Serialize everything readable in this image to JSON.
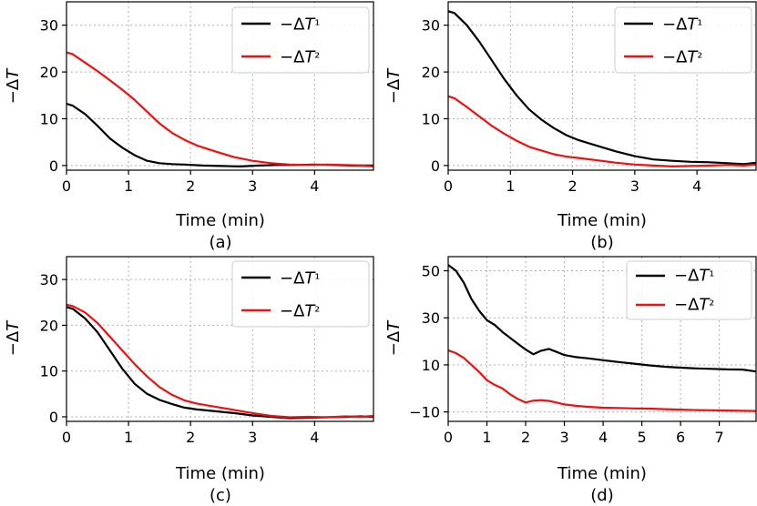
{
  "chart_data": [
    {
      "type": "line",
      "caption": "(a)",
      "xlabel": "Time (min)",
      "ylabel": "−ΔT",
      "xlim": [
        0,
        4.95
      ],
      "ylim": [
        -1,
        35
      ],
      "xticks": [
        0,
        1,
        2,
        3,
        4
      ],
      "yticks": [
        0,
        10,
        20,
        30
      ],
      "grid": true,
      "legend": "top-right",
      "series": [
        {
          "name": "−ΔT¹",
          "color": "#000000",
          "points": [
            [
              0,
              13.2
            ],
            [
              0.1,
              12.8
            ],
            [
              0.3,
              11
            ],
            [
              0.5,
              8.5
            ],
            [
              0.7,
              5.8
            ],
            [
              0.9,
              3.8
            ],
            [
              1.1,
              2.2
            ],
            [
              1.3,
              1
            ],
            [
              1.5,
              0.5
            ],
            [
              1.7,
              0.3
            ],
            [
              1.9,
              0.2
            ],
            [
              2.2,
              0
            ],
            [
              2.5,
              -0.1
            ],
            [
              2.8,
              -0.2
            ],
            [
              3.1,
              0
            ],
            [
              3.4,
              0.1
            ],
            [
              3.7,
              0.1
            ],
            [
              4.0,
              0.2
            ],
            [
              4.3,
              0.1
            ],
            [
              4.6,
              0
            ],
            [
              4.95,
              0
            ]
          ]
        },
        {
          "name": "−ΔT²",
          "color": "#ee1111",
          "points": [
            [
              0,
              24.2
            ],
            [
              0.1,
              23.8
            ],
            [
              0.3,
              22
            ],
            [
              0.5,
              20.2
            ],
            [
              0.7,
              18.2
            ],
            [
              0.9,
              16.2
            ],
            [
              1.1,
              14
            ],
            [
              1.3,
              11.5
            ],
            [
              1.5,
              9
            ],
            [
              1.7,
              7
            ],
            [
              1.9,
              5.5
            ],
            [
              2.1,
              4.3
            ],
            [
              2.4,
              3
            ],
            [
              2.7,
              1.8
            ],
            [
              3.0,
              1
            ],
            [
              3.3,
              0.5
            ],
            [
              3.6,
              0.2
            ],
            [
              3.9,
              0.1
            ],
            [
              4.2,
              0.2
            ],
            [
              4.5,
              0.1
            ],
            [
              4.75,
              0
            ],
            [
              4.95,
              -0.2
            ]
          ]
        }
      ]
    },
    {
      "type": "line",
      "caption": "(b)",
      "xlabel": "Time (min)",
      "ylabel": "−ΔT",
      "xlim": [
        0,
        4.95
      ],
      "ylim": [
        -1,
        35
      ],
      "xticks": [
        0,
        1,
        2,
        3,
        4
      ],
      "yticks": [
        0,
        10,
        20,
        30
      ],
      "grid": true,
      "legend": "top-right",
      "series": [
        {
          "name": "−ΔT¹",
          "color": "#000000",
          "points": [
            [
              0,
              33
            ],
            [
              0.1,
              32.6
            ],
            [
              0.3,
              30
            ],
            [
              0.5,
              26.5
            ],
            [
              0.7,
              22.5
            ],
            [
              0.9,
              18.5
            ],
            [
              1.1,
              15
            ],
            [
              1.3,
              12
            ],
            [
              1.5,
              9.8
            ],
            [
              1.7,
              8
            ],
            [
              1.9,
              6.5
            ],
            [
              2.1,
              5.4
            ],
            [
              2.4,
              4.2
            ],
            [
              2.7,
              3
            ],
            [
              3.0,
              2
            ],
            [
              3.3,
              1.3
            ],
            [
              3.6,
              1
            ],
            [
              3.9,
              0.8
            ],
            [
              4.2,
              0.7
            ],
            [
              4.5,
              0.5
            ],
            [
              4.75,
              0.3
            ],
            [
              4.95,
              0.6
            ]
          ]
        },
        {
          "name": "−ΔT²",
          "color": "#ee1111",
          "points": [
            [
              0,
              14.8
            ],
            [
              0.1,
              14.4
            ],
            [
              0.3,
              12.5
            ],
            [
              0.5,
              10.5
            ],
            [
              0.7,
              8.5
            ],
            [
              0.9,
              6.8
            ],
            [
              1.1,
              5.3
            ],
            [
              1.3,
              4
            ],
            [
              1.5,
              3.2
            ],
            [
              1.7,
              2.4
            ],
            [
              1.9,
              1.9
            ],
            [
              2.1,
              1.6
            ],
            [
              2.4,
              1.1
            ],
            [
              2.7,
              0.6
            ],
            [
              3.0,
              0.2
            ],
            [
              3.3,
              0
            ],
            [
              3.6,
              -0.2
            ],
            [
              3.9,
              -0.1
            ],
            [
              4.2,
              0
            ],
            [
              4.5,
              0.1
            ],
            [
              4.75,
              0
            ],
            [
              4.95,
              0.2
            ]
          ]
        }
      ]
    },
    {
      "type": "line",
      "caption": "(c)",
      "xlabel": "Time (min)",
      "ylabel": "−ΔT",
      "xlim": [
        0,
        4.95
      ],
      "ylim": [
        -1,
        35
      ],
      "xticks": [
        0,
        1,
        2,
        3,
        4
      ],
      "yticks": [
        0,
        10,
        20,
        30
      ],
      "grid": true,
      "legend": "top-right",
      "series": [
        {
          "name": "−ΔT¹",
          "color": "#000000",
          "points": [
            [
              0,
              24
            ],
            [
              0.1,
              23.6
            ],
            [
              0.3,
              21.5
            ],
            [
              0.5,
              18.5
            ],
            [
              0.7,
              14.5
            ],
            [
              0.9,
              10.5
            ],
            [
              1.1,
              7.2
            ],
            [
              1.3,
              5
            ],
            [
              1.5,
              3.7
            ],
            [
              1.7,
              2.8
            ],
            [
              1.9,
              2
            ],
            [
              2.1,
              1.6
            ],
            [
              2.4,
              1.2
            ],
            [
              2.7,
              0.8
            ],
            [
              3.0,
              0.3
            ],
            [
              3.3,
              0
            ],
            [
              3.6,
              -0.3
            ],
            [
              3.9,
              -0.2
            ],
            [
              4.2,
              -0.1
            ],
            [
              4.5,
              0
            ],
            [
              4.75,
              0.1
            ],
            [
              4.95,
              0
            ]
          ]
        },
        {
          "name": "−ΔT²",
          "color": "#ee1111",
          "points": [
            [
              0,
              24.5
            ],
            [
              0.1,
              24.2
            ],
            [
              0.3,
              22.8
            ],
            [
              0.5,
              20.5
            ],
            [
              0.7,
              17.5
            ],
            [
              0.9,
              14.5
            ],
            [
              1.1,
              11.5
            ],
            [
              1.3,
              8.8
            ],
            [
              1.5,
              6.5
            ],
            [
              1.7,
              4.8
            ],
            [
              1.9,
              3.6
            ],
            [
              2.1,
              2.9
            ],
            [
              2.4,
              2.2
            ],
            [
              2.7,
              1.5
            ],
            [
              3.0,
              0.8
            ],
            [
              3.3,
              0.2
            ],
            [
              3.6,
              -0.1
            ],
            [
              3.9,
              0
            ],
            [
              4.2,
              -0.1
            ],
            [
              4.5,
              0.1
            ],
            [
              4.75,
              0
            ],
            [
              4.95,
              0.2
            ]
          ]
        }
      ]
    },
    {
      "type": "line",
      "caption": "(d)",
      "xlabel": "Time (min)",
      "ylabel": "−ΔT",
      "xlim": [
        0,
        7.95
      ],
      "ylim": [
        -14,
        56
      ],
      "xticks": [
        0,
        1,
        2,
        3,
        4,
        5,
        6,
        7
      ],
      "yticks": [
        -10,
        10,
        30,
        50
      ],
      "grid": true,
      "legend": "top-right",
      "series": [
        {
          "name": "−ΔT¹",
          "color": "#000000",
          "points": [
            [
              0,
              52.5
            ],
            [
              0.2,
              50
            ],
            [
              0.4,
              45
            ],
            [
              0.6,
              38
            ],
            [
              0.8,
              33
            ],
            [
              1.0,
              29
            ],
            [
              1.2,
              27
            ],
            [
              1.4,
              24
            ],
            [
              1.6,
              21.5
            ],
            [
              1.8,
              19
            ],
            [
              2.0,
              16.5
            ],
            [
              2.2,
              14.5
            ],
            [
              2.4,
              16
            ],
            [
              2.6,
              16.8
            ],
            [
              2.8,
              15.5
            ],
            [
              3.0,
              14.2
            ],
            [
              3.3,
              13.3
            ],
            [
              3.6,
              12.8
            ],
            [
              4.0,
              12
            ],
            [
              4.4,
              11.2
            ],
            [
              4.8,
              10.5
            ],
            [
              5.2,
              9.8
            ],
            [
              5.6,
              9.2
            ],
            [
              6.0,
              8.8
            ],
            [
              6.4,
              8.5
            ],
            [
              6.8,
              8.3
            ],
            [
              7.2,
              8.1
            ],
            [
              7.6,
              8
            ],
            [
              7.95,
              7.2
            ]
          ]
        },
        {
          "name": "−ΔT²",
          "color": "#ee1111",
          "points": [
            [
              0,
              16.2
            ],
            [
              0.2,
              15
            ],
            [
              0.4,
              13
            ],
            [
              0.6,
              10
            ],
            [
              0.8,
              7
            ],
            [
              1.0,
              3.5
            ],
            [
              1.2,
              1.5
            ],
            [
              1.4,
              0
            ],
            [
              1.6,
              -2.5
            ],
            [
              1.8,
              -4.5
            ],
            [
              2.0,
              -6
            ],
            [
              2.2,
              -5.2
            ],
            [
              2.4,
              -5
            ],
            [
              2.6,
              -5.3
            ],
            [
              2.8,
              -6
            ],
            [
              3.0,
              -6.8
            ],
            [
              3.3,
              -7.4
            ],
            [
              3.6,
              -7.8
            ],
            [
              4.0,
              -8.2
            ],
            [
              4.4,
              -8.3
            ],
            [
              4.8,
              -8.5
            ],
            [
              5.2,
              -8.6
            ],
            [
              5.6,
              -8.8
            ],
            [
              6.0,
              -9
            ],
            [
              6.4,
              -9.2
            ],
            [
              6.8,
              -9.3
            ],
            [
              7.2,
              -9.4
            ],
            [
              7.6,
              -9.5
            ],
            [
              7.95,
              -9.6
            ]
          ]
        }
      ]
    }
  ]
}
